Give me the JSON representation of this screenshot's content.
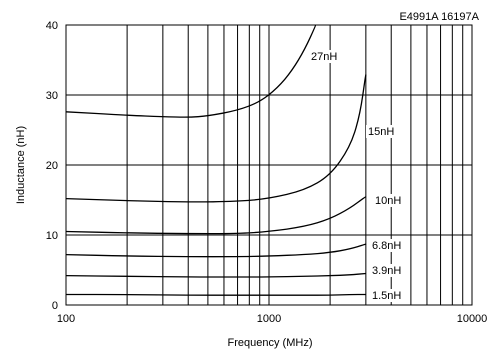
{
  "chart_data": {
    "type": "line",
    "header": "E4991A   16197A",
    "xlabel": "Frequency (MHz)",
    "ylabel": "Inductance (nH)",
    "x_scale": "log",
    "xlim": [
      100,
      10000
    ],
    "ylim": [
      0,
      40
    ],
    "x_ticks": [
      100,
      1000,
      10000
    ],
    "x_tick_labels": [
      "100",
      "1000",
      "10000"
    ],
    "y_ticks": [
      0,
      10,
      20,
      30,
      40
    ],
    "y_tick_labels": [
      "0",
      "10",
      "20",
      "30",
      "40"
    ],
    "grid": true,
    "series": [
      {
        "name": "27nH",
        "x": [
          100,
          200,
          300,
          400,
          500,
          700,
          900,
          1100,
          1300,
          1500,
          1700
        ],
        "y": [
          27.6,
          27.1,
          26.9,
          26.8,
          27.0,
          27.8,
          29.0,
          31.0,
          33.5,
          36.5,
          40.0
        ]
      },
      {
        "name": "15nH",
        "x": [
          100,
          200,
          400,
          700,
          1000,
          1500,
          2000,
          2500,
          2800,
          3000
        ],
        "y": [
          15.2,
          14.9,
          14.7,
          14.8,
          15.2,
          16.4,
          18.5,
          22.5,
          27.0,
          33.0
        ]
      },
      {
        "name": "10nH",
        "x": [
          100,
          200,
          400,
          700,
          1000,
          1500,
          2000,
          2500,
          3000
        ],
        "y": [
          10.5,
          10.3,
          10.2,
          10.2,
          10.5,
          11.2,
          12.3,
          13.8,
          15.5
        ]
      },
      {
        "name": "6.8nH",
        "x": [
          100,
          200,
          400,
          700,
          1000,
          1500,
          2000,
          2500,
          3000
        ],
        "y": [
          7.2,
          7.0,
          6.9,
          6.9,
          7.0,
          7.2,
          7.5,
          8.0,
          8.7
        ]
      },
      {
        "name": "3.9nH",
        "x": [
          100,
          200,
          400,
          700,
          1000,
          1500,
          2000,
          2500,
          3000
        ],
        "y": [
          4.2,
          4.1,
          4.0,
          4.0,
          4.0,
          4.1,
          4.2,
          4.3,
          4.5
        ]
      },
      {
        "name": "1.5nH",
        "x": [
          100,
          200,
          400,
          700,
          1000,
          1500,
          2000,
          2500,
          3000
        ],
        "y": [
          1.5,
          1.5,
          1.4,
          1.4,
          1.4,
          1.4,
          1.4,
          1.5,
          1.5
        ]
      }
    ]
  }
}
